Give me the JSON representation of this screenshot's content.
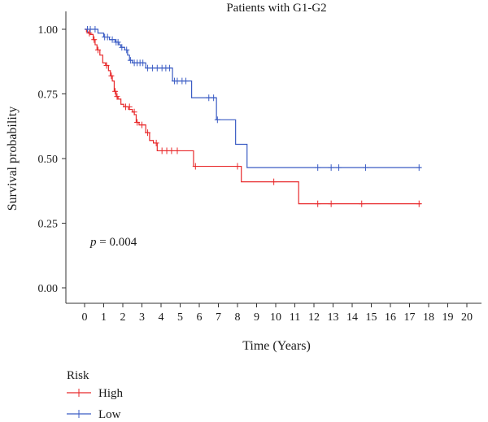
{
  "chart_data": {
    "type": "line",
    "title": "Patients with G1-G2",
    "xlabel": "Time (Years)",
    "ylabel": "Survival probability",
    "xlim": [
      0,
      20
    ],
    "ylim": [
      0,
      1
    ],
    "x_ticks": [
      "0",
      "1",
      "2",
      "3",
      "4",
      "5",
      "6",
      "7",
      "8",
      "9",
      "10",
      "11",
      "12",
      "13",
      "14",
      "15",
      "16",
      "17",
      "18",
      "19",
      "20"
    ],
    "y_ticks": [
      "0.00",
      "0.25",
      "0.50",
      "0.75",
      "1.00"
    ],
    "annotation": {
      "prefix": "p",
      "text": " = 0.004",
      "x": 0.3,
      "y": 0.18
    },
    "legend_title": "Risk",
    "legend_position": "bottom-left",
    "series": [
      {
        "name": "High",
        "color": "#e8292b",
        "steps": [
          [
            0,
            1.0
          ],
          [
            0.1,
            0.99
          ],
          [
            0.2,
            0.985
          ],
          [
            0.3,
            0.98
          ],
          [
            0.45,
            0.96
          ],
          [
            0.55,
            0.94
          ],
          [
            0.65,
            0.92
          ],
          [
            0.8,
            0.9
          ],
          [
            0.95,
            0.87
          ],
          [
            1.1,
            0.86
          ],
          [
            1.25,
            0.84
          ],
          [
            1.35,
            0.82
          ],
          [
            1.45,
            0.8
          ],
          [
            1.55,
            0.76
          ],
          [
            1.65,
            0.74
          ],
          [
            1.75,
            0.73
          ],
          [
            1.9,
            0.71
          ],
          [
            2.05,
            0.7
          ],
          [
            2.3,
            0.69
          ],
          [
            2.5,
            0.68
          ],
          [
            2.6,
            0.67
          ],
          [
            2.7,
            0.64
          ],
          [
            2.85,
            0.63
          ],
          [
            3.2,
            0.6
          ],
          [
            3.4,
            0.57
          ],
          [
            3.6,
            0.56
          ],
          [
            3.8,
            0.53
          ],
          [
            5.7,
            0.47
          ],
          [
            8.2,
            0.41
          ],
          [
            11.2,
            0.325
          ],
          [
            17.6,
            0.325
          ]
        ],
        "censors": [
          [
            0.25,
            0.985
          ],
          [
            0.5,
            0.96
          ],
          [
            0.7,
            0.92
          ],
          [
            1.15,
            0.86
          ],
          [
            1.4,
            0.82
          ],
          [
            1.6,
            0.76
          ],
          [
            1.7,
            0.74
          ],
          [
            2.15,
            0.7
          ],
          [
            2.35,
            0.7
          ],
          [
            2.6,
            0.68
          ],
          [
            2.75,
            0.64
          ],
          [
            3.0,
            0.63
          ],
          [
            3.3,
            0.6
          ],
          [
            3.75,
            0.56
          ],
          [
            4.05,
            0.53
          ],
          [
            4.3,
            0.53
          ],
          [
            4.55,
            0.53
          ],
          [
            4.85,
            0.53
          ],
          [
            5.8,
            0.47
          ],
          [
            8.0,
            0.47
          ],
          [
            9.9,
            0.41
          ],
          [
            12.2,
            0.325
          ],
          [
            12.9,
            0.325
          ],
          [
            14.5,
            0.325
          ],
          [
            17.5,
            0.325
          ]
        ]
      },
      {
        "name": "Low",
        "color": "#3b5cc4",
        "steps": [
          [
            0,
            1.0
          ],
          [
            0.7,
            0.985
          ],
          [
            1.0,
            0.97
          ],
          [
            1.3,
            0.96
          ],
          [
            1.6,
            0.95
          ],
          [
            1.8,
            0.94
          ],
          [
            1.9,
            0.93
          ],
          [
            2.1,
            0.92
          ],
          [
            2.25,
            0.9
          ],
          [
            2.35,
            0.88
          ],
          [
            2.5,
            0.87
          ],
          [
            3.2,
            0.85
          ],
          [
            4.6,
            0.8
          ],
          [
            5.6,
            0.735
          ],
          [
            6.9,
            0.65
          ],
          [
            7.9,
            0.555
          ],
          [
            8.5,
            0.465
          ],
          [
            17.6,
            0.465
          ]
        ],
        "censors": [
          [
            0.15,
            1.0
          ],
          [
            0.3,
            1.0
          ],
          [
            0.55,
            1.0
          ],
          [
            1.05,
            0.97
          ],
          [
            1.2,
            0.97
          ],
          [
            1.45,
            0.96
          ],
          [
            1.65,
            0.95
          ],
          [
            1.75,
            0.95
          ],
          [
            1.95,
            0.93
          ],
          [
            2.2,
            0.92
          ],
          [
            2.4,
            0.88
          ],
          [
            2.6,
            0.87
          ],
          [
            2.75,
            0.87
          ],
          [
            2.9,
            0.87
          ],
          [
            3.05,
            0.87
          ],
          [
            3.3,
            0.85
          ],
          [
            3.55,
            0.85
          ],
          [
            3.8,
            0.85
          ],
          [
            4.05,
            0.85
          ],
          [
            4.25,
            0.85
          ],
          [
            4.45,
            0.85
          ],
          [
            4.7,
            0.8
          ],
          [
            4.85,
            0.8
          ],
          [
            5.1,
            0.8
          ],
          [
            5.3,
            0.8
          ],
          [
            6.5,
            0.735
          ],
          [
            6.75,
            0.735
          ],
          [
            6.95,
            0.65
          ],
          [
            12.2,
            0.465
          ],
          [
            12.9,
            0.465
          ],
          [
            13.3,
            0.465
          ],
          [
            14.7,
            0.465
          ],
          [
            17.5,
            0.465
          ]
        ]
      }
    ]
  }
}
